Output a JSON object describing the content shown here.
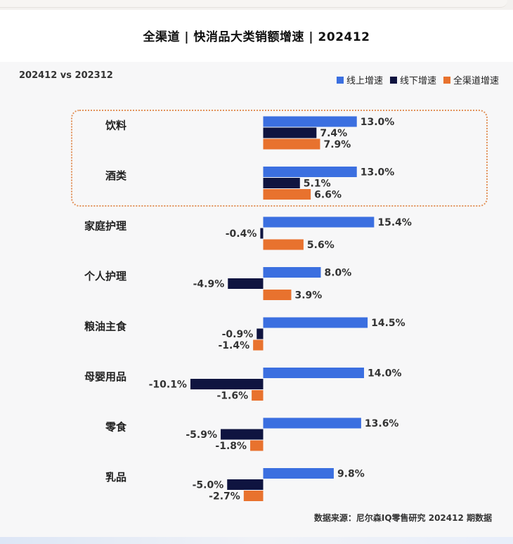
{
  "title": "全渠道 | 快消品大类销额增速 | 202412",
  "comparison": "202412 vs 202312",
  "source": "数据来源：尼尔森IQ零售研究 202412 期数据",
  "colors": {
    "online": "#3b6fe0",
    "offline": "#0f1440",
    "all": "#e8722e",
    "highlight_border": "#e2925a"
  },
  "chart_data": {
    "type": "bar",
    "orientation": "horizontal",
    "title": "全渠道 | 快消品大类销额增速 | 202412",
    "categories": [
      "饮料",
      "酒类",
      "家庭护理",
      "个人护理",
      "粮油主食",
      "母婴用品",
      "零食",
      "乳品"
    ],
    "series": [
      {
        "name": "线上增速",
        "color": "#3b6fe0",
        "values": [
          13.0,
          13.0,
          15.4,
          8.0,
          14.5,
          14.0,
          13.6,
          9.8
        ]
      },
      {
        "name": "线下增速",
        "color": "#0f1440",
        "values": [
          7.4,
          5.1,
          -0.4,
          -4.9,
          -0.9,
          -10.1,
          -5.9,
          -5.0
        ]
      },
      {
        "name": "全渠道增速",
        "color": "#e8722e",
        "values": [
          7.9,
          6.6,
          5.6,
          3.9,
          -1.4,
          -1.6,
          -1.8,
          -2.7
        ]
      }
    ],
    "value_format": "percent_1dp",
    "highlighted_categories": [
      "饮料",
      "酒类"
    ],
    "legend_position": "top-right",
    "grid": false
  }
}
